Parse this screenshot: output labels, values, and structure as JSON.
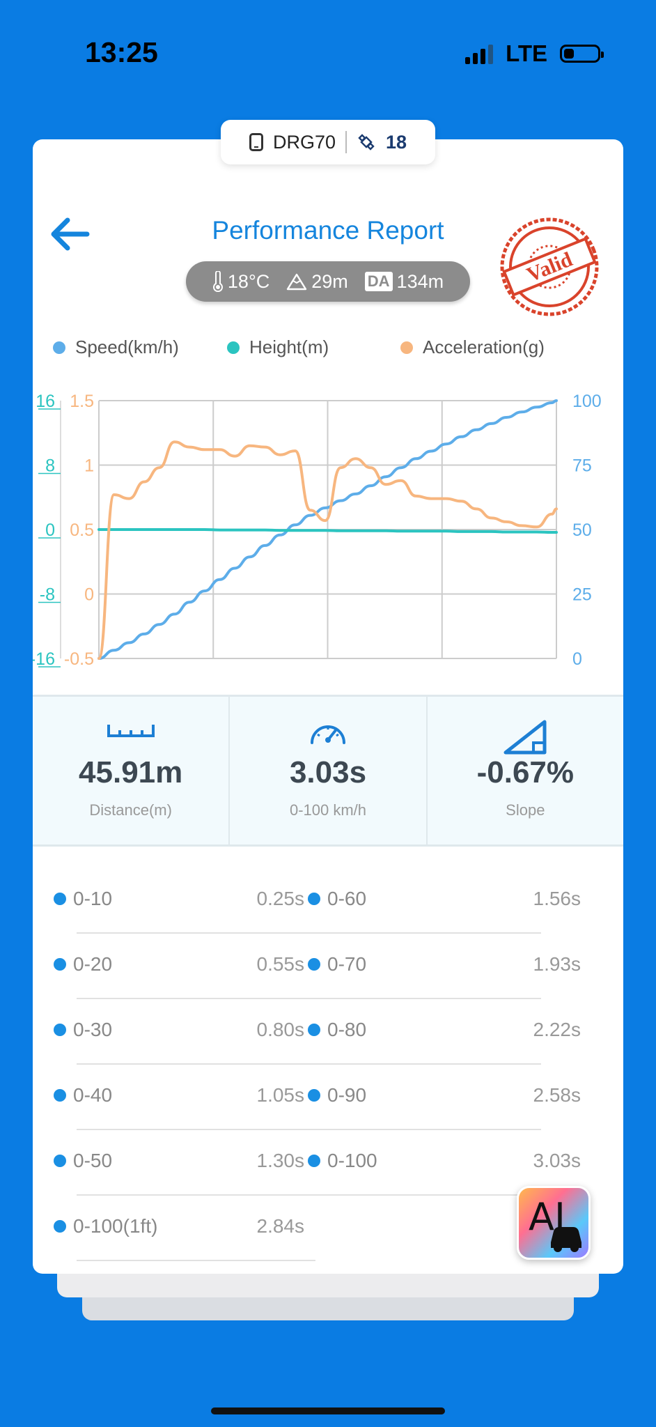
{
  "status_bar": {
    "time": "13:25",
    "network": "LTE",
    "battery_level": 0.3
  },
  "device": {
    "name": "DRG70",
    "satellites": "18"
  },
  "header": {
    "title": "Performance Report",
    "temperature": "18°C",
    "altitude": "29m",
    "density_altitude_label": "DA",
    "density_altitude": "134m",
    "stamp_text": "Valid"
  },
  "legend": [
    {
      "label": "Speed(km/h)",
      "color": "#5dade9"
    },
    {
      "label": "Height(m)",
      "color": "#2bc4c0"
    },
    {
      "label": "Acceleration(g)",
      "color": "#f7b67f"
    }
  ],
  "chart_data": {
    "type": "line",
    "x": [
      0,
      0.1,
      0.2,
      0.3,
      0.4,
      0.5,
      0.6,
      0.7,
      0.8,
      0.9,
      1.0,
      1.1,
      1.2,
      1.3,
      1.4,
      1.5,
      1.6,
      1.7,
      1.8,
      1.9,
      2.0,
      2.1,
      2.2,
      2.3,
      2.4,
      2.5,
      2.6,
      2.7,
      2.8,
      2.9,
      3.0,
      3.03
    ],
    "series": [
      {
        "name": "Speed(km/h)",
        "axis": "speed",
        "color": "#5dade9",
        "values": [
          0,
          3.2,
          6.1,
          9.5,
          13.2,
          17.2,
          21.8,
          26.2,
          30.6,
          35,
          39.4,
          43.8,
          47.9,
          51.8,
          55.5,
          58.4,
          61.2,
          63.8,
          67,
          70.5,
          74,
          77.5,
          80.4,
          83.2,
          86,
          88.7,
          91.1,
          93.5,
          95.6,
          97.5,
          99.2,
          100
        ]
      },
      {
        "name": "Height(m)",
        "axis": "height",
        "color": "#2bc4c0",
        "values": [
          0,
          0,
          0,
          0,
          0,
          0,
          0,
          0,
          -0.05,
          -0.05,
          -0.05,
          -0.05,
          -0.1,
          -0.1,
          -0.1,
          -0.1,
          -0.15,
          -0.15,
          -0.15,
          -0.15,
          -0.2,
          -0.2,
          -0.2,
          -0.2,
          -0.25,
          -0.25,
          -0.25,
          -0.3,
          -0.3,
          -0.3,
          -0.35,
          -0.35
        ]
      },
      {
        "name": "Acceleration(g)",
        "axis": "accel",
        "color": "#f7b67f",
        "values": [
          -0.5,
          0.77,
          0.74,
          0.87,
          0.98,
          1.18,
          1.14,
          1.12,
          1.12,
          1.07,
          1.15,
          1.14,
          1.08,
          1.11,
          0.65,
          0.57,
          0.98,
          1.05,
          0.98,
          0.85,
          0.88,
          0.76,
          0.74,
          0.74,
          0.72,
          0.66,
          0.59,
          0.56,
          0.53,
          0.52,
          0.62,
          0.66
        ]
      }
    ],
    "axes": {
      "speed": {
        "side": "right",
        "ticks": [
          0,
          25,
          50,
          75,
          100
        ],
        "ylim": [
          0,
          100
        ]
      },
      "height": {
        "side": "left-outer",
        "ticks": [
          -16,
          -8,
          0,
          8,
          16
        ],
        "ylim": [
          -16,
          16
        ]
      },
      "accel": {
        "side": "left-inner",
        "ticks": [
          -0.5,
          0,
          0.5,
          1,
          1.5
        ],
        "ylim": [
          -0.5,
          1.5
        ]
      }
    },
    "xlim": [
      0,
      3.03
    ],
    "grid": true
  },
  "stats": [
    {
      "icon": "ruler-icon",
      "value": "45.91m",
      "label": "Distance(m)"
    },
    {
      "icon": "speedometer-icon",
      "value": "3.03s",
      "label": "0-100 km/h"
    },
    {
      "icon": "slope-icon",
      "value": "-0.67%",
      "label": "Slope"
    }
  ],
  "splits": [
    {
      "name": "0-10",
      "time": "0.25s"
    },
    {
      "name": "0-60",
      "time": "1.56s"
    },
    {
      "name": "0-20",
      "time": "0.55s"
    },
    {
      "name": "0-70",
      "time": "1.93s"
    },
    {
      "name": "0-30",
      "time": "0.80s"
    },
    {
      "name": "0-80",
      "time": "2.22s"
    },
    {
      "name": "0-40",
      "time": "1.05s"
    },
    {
      "name": "0-90",
      "time": "2.58s"
    },
    {
      "name": "0-50",
      "time": "1.30s"
    },
    {
      "name": "0-100",
      "time": "3.03s"
    },
    {
      "name": "0-100(1ft)",
      "time": "2.84s"
    }
  ],
  "ai_badge": {
    "label": "AI"
  }
}
